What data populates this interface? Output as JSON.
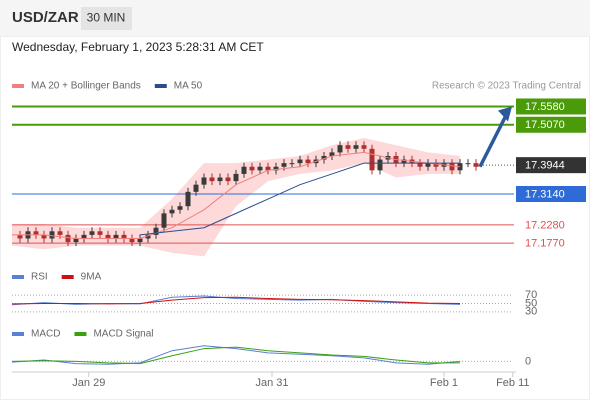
{
  "header": {
    "symbol": "USD/ZAR",
    "interval": "30 MIN",
    "timestamp": "Wednesday, February 1, 2023 5:28:31 AM CET"
  },
  "chart_data": {
    "type": "candlestick",
    "source": "Research © 2023 Trading Central",
    "closes": [
      17.2,
      17.19,
      17.21,
      17.2,
      17.19,
      17.21,
      17.2,
      17.18,
      17.19,
      17.2,
      17.21,
      17.2,
      17.19,
      17.2,
      17.19,
      17.18,
      17.19,
      17.2,
      17.22,
      17.26,
      17.27,
      17.28,
      17.32,
      17.34,
      17.36,
      17.35,
      17.36,
      17.35,
      17.37,
      17.39,
      17.38,
      17.39,
      17.38,
      17.39,
      17.4,
      17.4,
      17.41,
      17.4,
      17.41,
      17.42,
      17.43,
      17.45,
      17.44,
      17.45,
      17.44,
      17.38,
      17.41,
      17.42,
      17.4,
      17.41,
      17.4,
      17.39,
      17.4,
      17.39,
      17.4,
      17.38,
      17.4,
      17.4,
      17.39
    ],
    "up_color": "#3a3a3a",
    "down_color": "#b03030",
    "ylim": [
      17.13,
      17.59
    ],
    "xlim": [
      0,
      63
    ],
    "xticks": [
      {
        "value": 9.6,
        "label": "Jan 29"
      },
      {
        "value": 32.5,
        "label": "Jan 31"
      },
      {
        "value": 54,
        "label": "Feb 1"
      },
      {
        "value": 62.6,
        "label": "Feb 11"
      }
    ],
    "overlay_x": [
      0,
      4,
      8,
      12,
      16,
      20,
      24,
      28,
      32,
      36,
      40,
      44,
      48,
      52,
      56
    ],
    "series": [
      {
        "name": "MA 20 + Bollinger Bands",
        "color": "#f08080",
        "values": [
          17.2,
          17.2,
          17.19,
          17.19,
          17.19,
          17.22,
          17.27,
          17.34,
          17.38,
          17.39,
          17.42,
          17.43,
          17.41,
          17.4,
          17.39
        ],
        "upper": [
          17.23,
          17.23,
          17.22,
          17.22,
          17.22,
          17.3,
          17.4,
          17.4,
          17.41,
          17.42,
          17.45,
          17.47,
          17.45,
          17.43,
          17.42
        ],
        "lower": [
          17.17,
          17.16,
          17.17,
          17.17,
          17.17,
          17.15,
          17.14,
          17.28,
          17.35,
          17.37,
          17.38,
          17.4,
          17.36,
          17.37,
          17.37
        ],
        "band_color": "#fdd9d9"
      },
      {
        "name": "MA 50",
        "color": "#2b4d8c",
        "values": [
          null,
          null,
          null,
          null,
          17.2,
          17.21,
          17.22,
          17.26,
          17.3,
          17.34,
          17.37,
          17.4,
          17.4,
          17.4,
          17.4
        ]
      }
    ],
    "levels": [
      {
        "value": 17.558,
        "label": "17.5580",
        "color": "#4a9a0a",
        "boxed": true
      },
      {
        "value": 17.507,
        "label": "17.5070",
        "color": "#4a9a0a",
        "boxed": true
      },
      {
        "value": 17.3944,
        "label": "17.3944",
        "color": "#333333",
        "boxed": true,
        "dotted": true
      },
      {
        "value": 17.314,
        "label": "17.3140",
        "color": "#2e6bd6",
        "boxed": true
      },
      {
        "value": 17.228,
        "label": "17.2280",
        "color": "#e05050",
        "boxed": false
      },
      {
        "value": 17.177,
        "label": "17.1770",
        "color": "#e05050",
        "boxed": false
      }
    ],
    "rsi": {
      "ylim": [
        20,
        80
      ],
      "yticks": [
        70,
        50,
        30
      ],
      "series": [
        {
          "name": "RSI",
          "color": "#5b7fd6",
          "values": [
            47,
            52,
            48,
            50,
            49,
            65,
            68,
            62,
            60,
            58,
            60,
            55,
            52,
            50,
            48
          ]
        },
        {
          "name": "9MA",
          "color": "#d01010",
          "values": [
            49,
            50,
            50,
            49,
            50,
            58,
            64,
            65,
            62,
            60,
            59,
            57,
            54,
            51,
            50
          ]
        }
      ]
    },
    "macd": {
      "ylim": [
        -0.012,
        0.03
      ],
      "yticks": [
        0
      ],
      "series": [
        {
          "name": "MACD",
          "color": "#5b7fd6",
          "values": [
            -0.001,
            0.002,
            -0.003,
            -0.004,
            -0.002,
            0.015,
            0.022,
            0.018,
            0.012,
            0.01,
            0.008,
            0.005,
            -0.002,
            -0.004,
            0.0
          ]
        },
        {
          "name": "MACD Signal",
          "color": "#3aa010",
          "values": [
            0.0,
            0.001,
            0.0,
            -0.002,
            -0.003,
            0.008,
            0.018,
            0.02,
            0.015,
            0.012,
            0.009,
            0.007,
            0.002,
            -0.002,
            -0.002
          ]
        }
      ]
    }
  }
}
